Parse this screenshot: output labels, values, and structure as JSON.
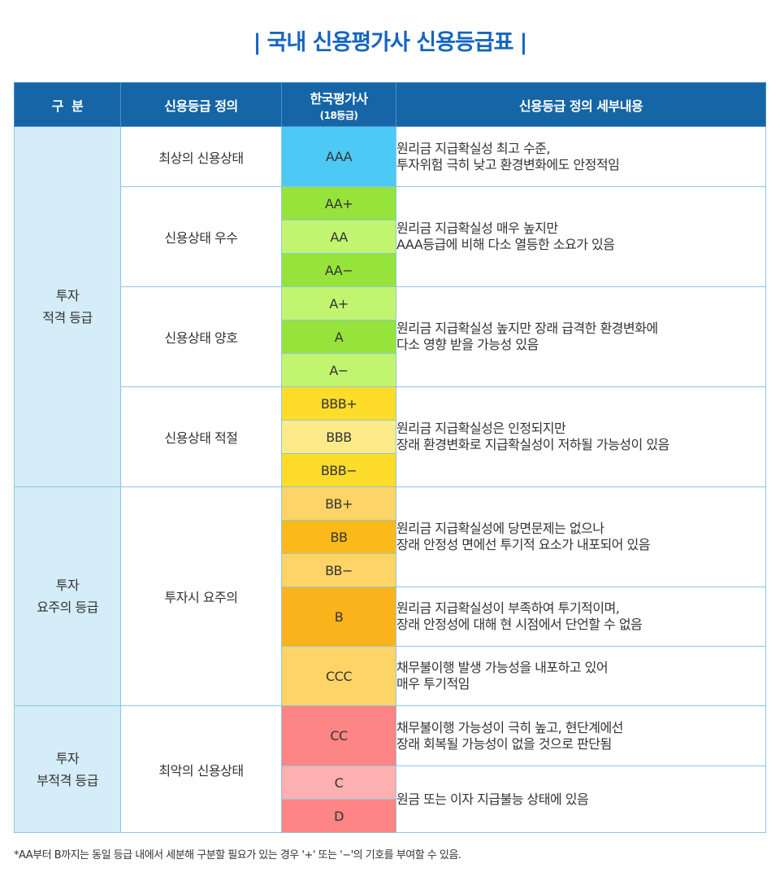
{
  "title": "국내 신용평가사 신용등급표",
  "title_bar": "|",
  "headers": {
    "category": "구  분",
    "definition": "신용등급 정의",
    "agency": "한국평가사",
    "agency_sub": "(18등급)",
    "detail": "신용등급 정의 세부내용"
  },
  "groups": {
    "investment": [
      "투자",
      "적격 등급"
    ],
    "caution": [
      "투자",
      "요주의 등급"
    ],
    "noninvest": [
      "투자",
      "부적격 등급"
    ]
  },
  "definitions": {
    "d1": "최상의 신용상태",
    "d2": "신용상태 우수",
    "d3": "신용상태 양호",
    "d4": "신용상태 적절",
    "d5": "투자시 요주의",
    "d6": "최악의 신용상태"
  },
  "grades": [
    {
      "code": "AAA",
      "color": "#4dc9f5"
    },
    {
      "code": "AA+",
      "color": "#96e33c"
    },
    {
      "code": "AA",
      "color": "#c1f56f"
    },
    {
      "code": "AA−",
      "color": "#96e33c"
    },
    {
      "code": "A+",
      "color": "#c1f56f"
    },
    {
      "code": "A",
      "color": "#96e33c"
    },
    {
      "code": "A−",
      "color": "#c1f56f"
    },
    {
      "code": "BBB+",
      "color": "#fddc2a"
    },
    {
      "code": "BBB",
      "color": "#fdeb8a"
    },
    {
      "code": "BBB−",
      "color": "#fddc2a"
    },
    {
      "code": "BB+",
      "color": "#fed466"
    },
    {
      "code": "BB",
      "color": "#fcba1a"
    },
    {
      "code": "BB−",
      "color": "#fed466"
    },
    {
      "code": "B",
      "color": "#fbb31c"
    },
    {
      "code": "CCC",
      "color": "#fed466"
    },
    {
      "code": "CC",
      "color": "#fd8585"
    },
    {
      "code": "C",
      "color": "#feafb0"
    },
    {
      "code": "D",
      "color": "#fd8585"
    }
  ],
  "details": {
    "t1": [
      "원리금 지급확실성 최고 수준,",
      "투자위험 극히 낮고 환경변화에도 안정적임"
    ],
    "t2": [
      "원리금 지급확실성 매우 높지만",
      "AAA등급에 비해 다소 열등한 소요가 있음"
    ],
    "t3": [
      "원리금 지급확실성 높지만 장래 급격한 환경변화에",
      "다소 영향 받을 가능성 있음"
    ],
    "t4": [
      "원리금 지급확실성은 인정되지만",
      "장래 환경변화로 지급확실성이 저하될 가능성이 있음"
    ],
    "t5": [
      "원리금 지급확실성에 당면문제는 없으나",
      "장래 안정성 면에선 투기적 요소가 내포되어 있음"
    ],
    "t6": [
      "원리금 지급확실성이 부족하여 투기적이며,",
      "장래 안정성에 대해 현 시점에서 단언할 수 없음"
    ],
    "t7": [
      "채무불이행 발생 가능성을 내포하고 있어",
      "매우 투기적임"
    ],
    "t8": [
      "채무불이행 가능성이 극히 높고, 현단계에선",
      "장래 회복될 가능성이 없을 것으로 판단됨"
    ],
    "t9": [
      "원금 또는 이자 지급불능 상태에 있음"
    ]
  },
  "note": "*AA부터 B까지는 동일 등급 내에서 세분해 구분할 필요가 있는 경우 '+' 또는 '−'의 기호를 부여할 수 있음."
}
